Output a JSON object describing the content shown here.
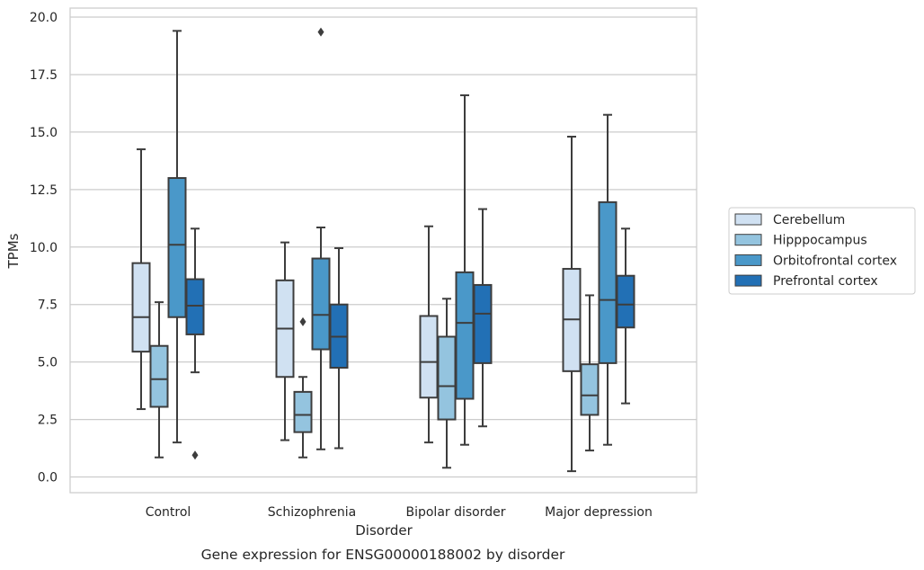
{
  "chart_data": {
    "type": "box",
    "caption": "Gene expression for ENSG00000188002 by disorder",
    "xlabel": "Disorder",
    "ylabel": "TPMs",
    "ylim": [
      -0.6,
      20.4
    ],
    "yticks": [
      "0.0",
      "2.5",
      "5.0",
      "7.5",
      "10.0",
      "12.5",
      "15.0",
      "17.5",
      "20.0"
    ],
    "ytick_values": [
      0,
      2.5,
      5,
      7.5,
      10,
      12.5,
      15,
      17.5,
      20
    ],
    "categories": [
      "Control",
      "Schizophrenia",
      "Bipolar disorder",
      "Major depression"
    ],
    "grid": "horizontal",
    "legend_position": "right",
    "series": [
      {
        "name": "Cerebellum",
        "color": "#d0e1f2",
        "boxes": [
          {
            "whislo": 2.95,
            "q1": 5.45,
            "med": 6.95,
            "q3": 9.3,
            "whishi": 14.25,
            "fliers": []
          },
          {
            "whislo": 1.6,
            "q1": 4.35,
            "med": 6.45,
            "q3": 8.55,
            "whishi": 10.2,
            "fliers": []
          },
          {
            "whislo": 1.5,
            "q1": 3.45,
            "med": 5.0,
            "q3": 7.0,
            "whishi": 10.9,
            "fliers": []
          },
          {
            "whislo": 0.25,
            "q1": 4.6,
            "med": 6.85,
            "q3": 9.05,
            "whishi": 14.8,
            "fliers": []
          }
        ]
      },
      {
        "name": "Hipppocampus",
        "color": "#94c4df",
        "boxes": [
          {
            "whislo": 0.85,
            "q1": 3.05,
            "med": 4.25,
            "q3": 5.7,
            "whishi": 7.6,
            "fliers": []
          },
          {
            "whislo": 0.85,
            "q1": 1.95,
            "med": 2.7,
            "q3": 3.7,
            "whishi": 4.35,
            "fliers": [
              6.75
            ]
          },
          {
            "whislo": 0.4,
            "q1": 2.5,
            "med": 3.95,
            "q3": 6.1,
            "whishi": 7.75,
            "fliers": []
          },
          {
            "whislo": 1.15,
            "q1": 2.7,
            "med": 3.55,
            "q3": 4.9,
            "whishi": 7.9,
            "fliers": []
          }
        ]
      },
      {
        "name": "Orbitofrontal cortex",
        "color": "#4a98c9",
        "boxes": [
          {
            "whislo": 1.5,
            "q1": 6.95,
            "med": 10.1,
            "q3": 13.0,
            "whishi": 19.4,
            "fliers": []
          },
          {
            "whislo": 1.2,
            "q1": 5.55,
            "med": 7.05,
            "q3": 9.5,
            "whishi": 10.85,
            "fliers": [
              19.35
            ]
          },
          {
            "whislo": 1.4,
            "q1": 3.4,
            "med": 6.7,
            "q3": 8.9,
            "whishi": 16.6,
            "fliers": []
          },
          {
            "whislo": 1.4,
            "q1": 4.95,
            "med": 7.7,
            "q3": 11.95,
            "whishi": 15.75,
            "fliers": []
          }
        ]
      },
      {
        "name": "Prefrontal cortex",
        "color": "#2270b5",
        "boxes": [
          {
            "whislo": 4.55,
            "q1": 6.2,
            "med": 7.45,
            "q3": 8.6,
            "whishi": 10.8,
            "fliers": [
              0.95
            ]
          },
          {
            "whislo": 1.25,
            "q1": 4.75,
            "med": 6.1,
            "q3": 7.5,
            "whishi": 9.95,
            "fliers": []
          },
          {
            "whislo": 2.2,
            "q1": 4.95,
            "med": 7.1,
            "q3": 8.35,
            "whishi": 11.65,
            "fliers": []
          },
          {
            "whislo": 3.2,
            "q1": 6.5,
            "med": 7.5,
            "q3": 8.75,
            "whishi": 10.8,
            "fliers": []
          }
        ]
      }
    ]
  }
}
